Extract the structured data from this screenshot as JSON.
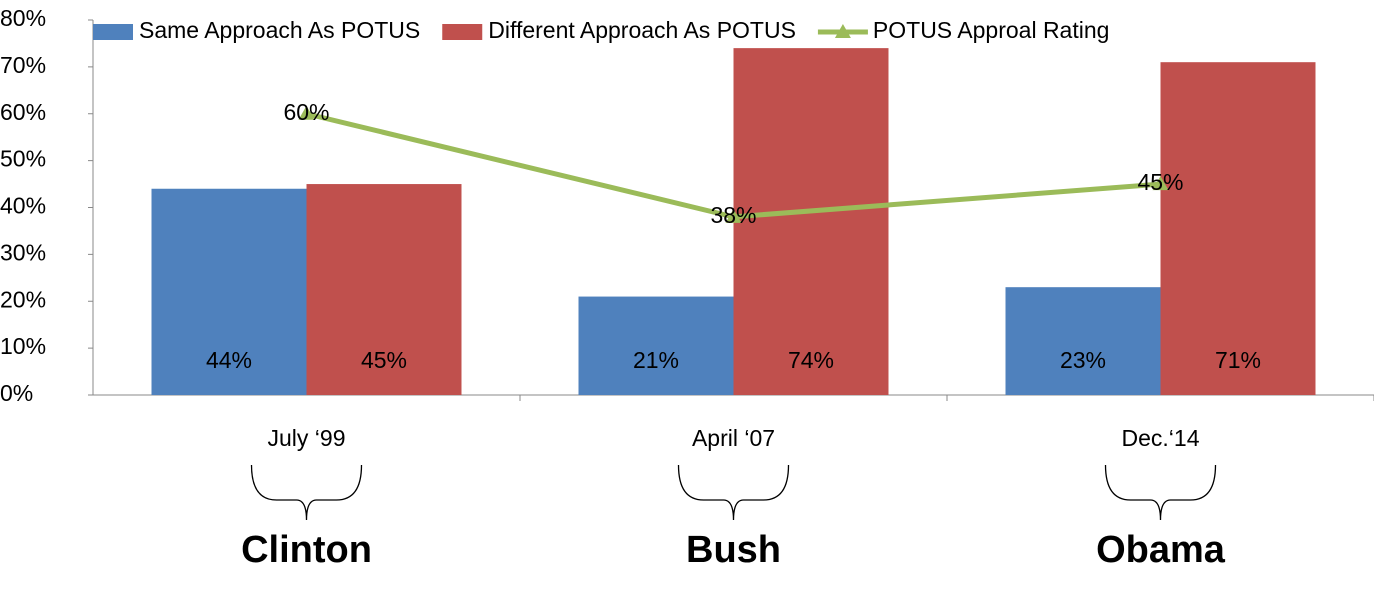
{
  "chart_data": {
    "type": "bar_line",
    "categories": [
      "July ‘99",
      "April ‘07",
      "Dec.‘14"
    ],
    "series": [
      {
        "name": "Same Approach As POTUS",
        "type": "bar",
        "color": "#4f81bd",
        "values": [
          44,
          21,
          23
        ],
        "value_labels": [
          "44%",
          "21%",
          "23%"
        ]
      },
      {
        "name": "Different Approach As POTUS",
        "type": "bar",
        "color": "#c0504d",
        "values": [
          45,
          74,
          71
        ],
        "value_labels": [
          "45%",
          "74%",
          "71%"
        ]
      },
      {
        "name": "POTUS Approal Rating",
        "type": "line",
        "color": "#9bbb59",
        "values": [
          60,
          38,
          45
        ],
        "value_labels": [
          "60%",
          "38%",
          "45%"
        ]
      }
    ],
    "ylim": [
      0,
      80
    ],
    "yticks": [
      {
        "value": 0,
        "label": "0%"
      },
      {
        "value": 10,
        "label": "10%"
      },
      {
        "value": 20,
        "label": "20%"
      },
      {
        "value": 30,
        "label": "30%"
      },
      {
        "value": 40,
        "label": "40%"
      },
      {
        "value": 50,
        "label": "50%"
      },
      {
        "value": 60,
        "label": "60%"
      },
      {
        "value": 70,
        "label": "70%"
      },
      {
        "value": 80,
        "label": "80%"
      }
    ],
    "legend": "top",
    "annotations": [
      {
        "text": "Clinton",
        "color": "#4f81bd"
      },
      {
        "text": "Bush",
        "color": "#c0504d"
      },
      {
        "text": "Obama",
        "color": "#4f81bd"
      }
    ]
  }
}
